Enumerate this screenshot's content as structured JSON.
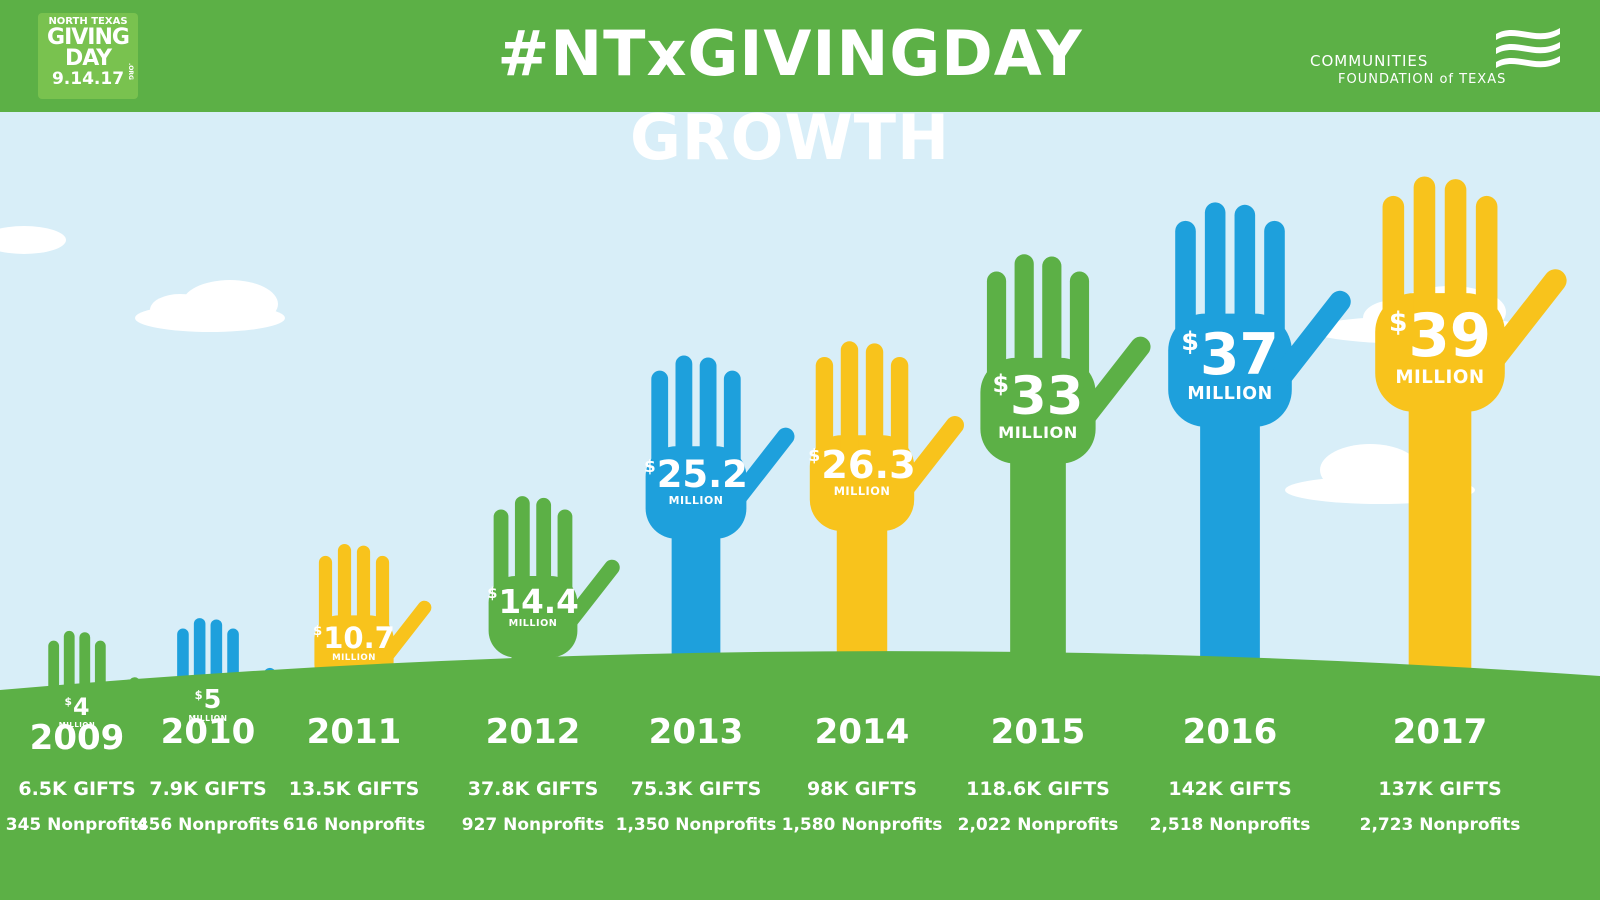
{
  "header": {
    "title": "#NTxGIVINGDAY GROWTH",
    "logo_line1": "NORTH TEXAS",
    "logo_line2": "GIVING",
    "logo_line3": "DAY",
    "logo_org": ".ORG",
    "logo_date": "9.14.17",
    "sponsor_line1": "COMMUNITIES",
    "sponsor_line2": "FOUNDATION of TEXAS"
  },
  "colors": {
    "green": "#5cb046",
    "blue": "#1ea0dc",
    "yellow": "#f8c31c",
    "sky": "#d8eef8",
    "ground": "#5cb046"
  },
  "chart_data": {
    "type": "bar",
    "title": "#NTxGIVINGDAY GROWTH",
    "unit_label": "MILLION",
    "categories": [
      "2009",
      "2010",
      "2011",
      "2012",
      "2013",
      "2014",
      "2015",
      "2016",
      "2017"
    ],
    "values": [
      4,
      5,
      10.7,
      14.4,
      25.2,
      26.3,
      33,
      37,
      39
    ],
    "value_labels": [
      "4",
      "5",
      "10.7",
      "14.4",
      "25.2",
      "26.3",
      "33",
      "37",
      "39"
    ],
    "currency_symbol": "$",
    "bar_colors": [
      "green",
      "blue",
      "yellow",
      "green",
      "blue",
      "yellow",
      "green",
      "blue",
      "yellow"
    ],
    "gifts": [
      "6.5K GIFTS",
      "7.9K GIFTS",
      "13.5K GIFTS",
      "37.8K GIFTS",
      "75.3K GIFTS",
      "98K GIFTS",
      "118.6K GIFTS",
      "142K GIFTS",
      "137K GIFTS"
    ],
    "nonprofits": [
      "345 Nonprofits",
      "456 Nonprofits",
      "616 Nonprofits",
      "927 Nonprofits",
      "1,350 Nonprofits",
      "1,580 Nonprofits",
      "2,022 Nonprofits",
      "2,518 Nonprofits",
      "2,723 Nonprofits"
    ]
  }
}
